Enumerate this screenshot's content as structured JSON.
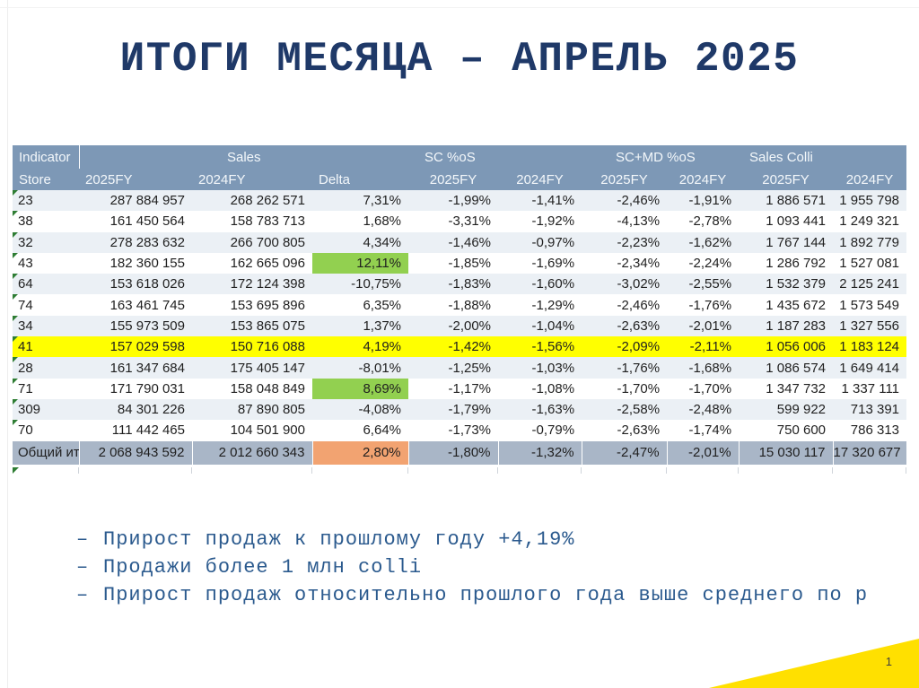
{
  "slide": {
    "title": "ИТОГИ МЕСЯЦА – АПРЕЛЬ 2025",
    "page_number": "1",
    "bullet_marker": "–",
    "bullets": [
      "Прирост продаж к прошлому году +4,19%",
      "Продажи более 1 млн colli",
      "Прирост продаж относительно прошлого года выше среднего по р"
    ]
  },
  "table": {
    "group_headers": [
      "Indicator",
      "Sales",
      "SC %oS",
      "SC+MD %oS",
      "Sales Colli"
    ],
    "col_headers": [
      "Store",
      "2025FY",
      "2024FY",
      "Delta",
      "2025FY",
      "2024FY",
      "2025FY",
      "2024FY",
      "2025FY",
      "2024FY"
    ],
    "rows": [
      {
        "store": "23",
        "cells": [
          "287 884 957",
          "268 262 571",
          "7,31%",
          "-1,99%",
          "-1,41%",
          "-2,46%",
          "-1,91%",
          "1 886 571",
          "1 955 798"
        ]
      },
      {
        "store": "38",
        "cells": [
          "161 450 564",
          "158 783 713",
          "1,68%",
          "-3,31%",
          "-1,92%",
          "-4,13%",
          "-2,78%",
          "1 093 441",
          "1 249 321"
        ]
      },
      {
        "store": "32",
        "cells": [
          "278 283 632",
          "266 700 805",
          "4,34%",
          "-1,46%",
          "-0,97%",
          "-2,23%",
          "-1,62%",
          "1 767 144",
          "1 892 779"
        ]
      },
      {
        "store": "43",
        "cells": [
          "182 360 155",
          "162 665 096",
          "12,11%",
          "-1,85%",
          "-1,69%",
          "-2,34%",
          "-2,24%",
          "1 286 792",
          "1 527 081"
        ],
        "delta_highlight": "green"
      },
      {
        "store": "64",
        "cells": [
          "153 618 026",
          "172 124 398",
          "-10,75%",
          "-1,83%",
          "-1,60%",
          "-3,02%",
          "-2,55%",
          "1 532 379",
          "2 125 241"
        ]
      },
      {
        "store": "74",
        "cells": [
          "163 461 745",
          "153 695 896",
          "6,35%",
          "-1,88%",
          "-1,29%",
          "-2,46%",
          "-1,76%",
          "1 435 672",
          "1 573 549"
        ]
      },
      {
        "store": "34",
        "cells": [
          "155 973 509",
          "153 865 075",
          "1,37%",
          "-2,00%",
          "-1,04%",
          "-2,63%",
          "-2,01%",
          "1 187 283",
          "1 327 556"
        ]
      },
      {
        "store": "41",
        "cells": [
          "157 029 598",
          "150 716 088",
          "4,19%",
          "-1,42%",
          "-1,56%",
          "-2,09%",
          "-2,11%",
          "1 056 006",
          "1 183 124"
        ],
        "highlight": "yellow"
      },
      {
        "store": "28",
        "cells": [
          "161 347 684",
          "175 405 147",
          "-8,01%",
          "-1,25%",
          "-1,03%",
          "-1,76%",
          "-1,68%",
          "1 086 574",
          "1 649 414"
        ]
      },
      {
        "store": "71",
        "cells": [
          "171 790 031",
          "158 048 849",
          "8,69%",
          "-1,17%",
          "-1,08%",
          "-1,70%",
          "-1,70%",
          "1 347 732",
          "1 337 111"
        ],
        "delta_highlight": "green"
      },
      {
        "store": "309",
        "cells": [
          "84 301 226",
          "87 890 805",
          "-4,08%",
          "-1,79%",
          "-1,63%",
          "-2,58%",
          "-2,48%",
          "599 922",
          "713 391"
        ]
      },
      {
        "store": "70",
        "cells": [
          "111 442 465",
          "104 501 900",
          "6,64%",
          "-1,73%",
          "-0,79%",
          "-2,63%",
          "-1,74%",
          "750 600",
          "786 313"
        ]
      }
    ],
    "total_row": {
      "store": "Общий ит",
      "cells": [
        "2 068 943 592",
        "2 012 660 343",
        "2,80%",
        "-1,80%",
        "-1,32%",
        "-2,47%",
        "-2,01%",
        "15 030 117",
        "17 320 677"
      ],
      "delta_highlight": "orange"
    }
  },
  "colors": {
    "header_bg": "#7D98B6",
    "band_row_bg": "#EBF0F5",
    "total_row_bg": "#A9B6C7",
    "highlight_yellow": "#FFFF00",
    "highlight_green": "#92D050",
    "highlight_orange": "#F2A371",
    "accent_triangle": "#FFE000",
    "title_blue": "#1F3968",
    "bullet_blue": "#2B5A8E",
    "error_marker_green": "#2E7D33"
  }
}
